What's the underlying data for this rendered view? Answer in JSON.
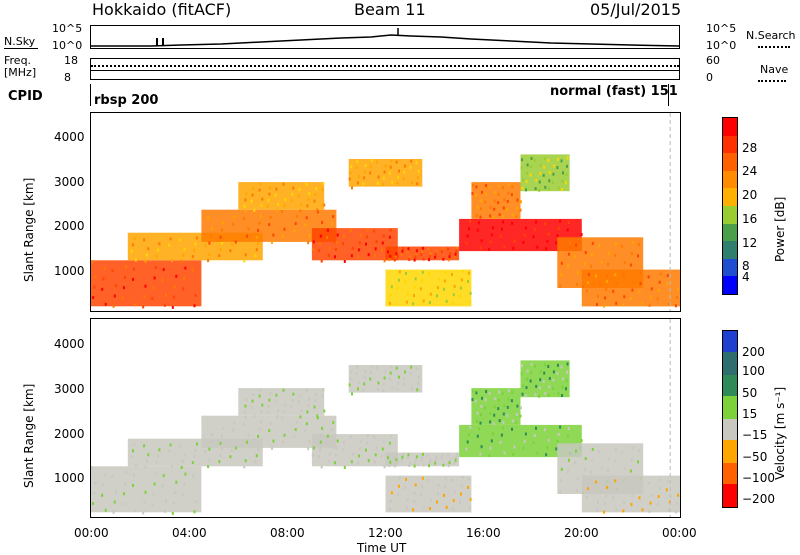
{
  "header": {
    "station": "Hokkaido (fitACF)",
    "beam": "Beam 11",
    "date": "05/Jul/2015"
  },
  "top_panels": {
    "nsky_label": "N.Sky",
    "nsky_ticks": [
      "10^5",
      "10^0"
    ],
    "nsearch_label": "N.Search",
    "nsearch_ticks": [
      "10^5",
      "10^0"
    ],
    "freq_label_1": "Freq.",
    "freq_label_2": "[MHz]",
    "freq_ticks": [
      "18",
      "8"
    ],
    "nave_label": "Nave",
    "nave_ticks": [
      "60",
      "0"
    ],
    "cpid_label": "CPID",
    "cpid_left": "rbsp 200",
    "cpid_right": "normal (fast) 151"
  },
  "chart_data": [
    {
      "type": "heatmap",
      "title": "",
      "xlabel": "Time UT",
      "ylabel": "Slant Range [km]",
      "x_ticks": [
        "00:00",
        "04:00",
        "08:00",
        "12:00",
        "16:00",
        "20:00",
        "00:00"
      ],
      "y_ticks": [
        "1000",
        "2000",
        "3000",
        "4000"
      ],
      "ylim": [
        200,
        4500
      ],
      "colorbar": {
        "label": "Power [dB]",
        "ticks": [
          "4",
          "8",
          "12",
          "16",
          "20",
          "24",
          "28"
        ],
        "range": [
          0,
          30
        ],
        "colors": [
          "#0000ff",
          "#1f4fd0",
          "#2f8060",
          "#4aa04a",
          "#9acd32",
          "#ffd700",
          "#ffa500",
          "#ff7a00",
          "#ff4500",
          "#ff0000"
        ]
      },
      "bands": [
        {
          "t_start": 0.0,
          "t_end": 4.5,
          "r_low": 300,
          "r_high": 1300,
          "level": 0.85
        },
        {
          "t_start": 1.5,
          "t_end": 7.0,
          "r_low": 1300,
          "r_high": 1900,
          "level": 0.7
        },
        {
          "t_start": 4.5,
          "t_end": 10.0,
          "r_low": 1700,
          "r_high": 2400,
          "level": 0.8
        },
        {
          "t_start": 6.0,
          "t_end": 9.5,
          "r_low": 2400,
          "r_high": 3000,
          "level": 0.65
        },
        {
          "t_start": 9.0,
          "t_end": 12.5,
          "r_low": 1300,
          "r_high": 2000,
          "level": 0.85
        },
        {
          "t_start": 10.5,
          "t_end": 13.5,
          "r_low": 2900,
          "r_high": 3500,
          "level": 0.7
        },
        {
          "t_start": 12.0,
          "t_end": 15.0,
          "r_low": 1300,
          "r_high": 1600,
          "level": 0.9
        },
        {
          "t_start": 12.0,
          "t_end": 15.5,
          "r_low": 300,
          "r_high": 1100,
          "level": 0.6
        },
        {
          "t_start": 15.0,
          "t_end": 20.0,
          "r_low": 1500,
          "r_high": 2200,
          "level": 0.95
        },
        {
          "t_start": 15.5,
          "t_end": 17.5,
          "r_low": 2200,
          "r_high": 3000,
          "level": 0.75
        },
        {
          "t_start": 17.5,
          "t_end": 19.5,
          "r_low": 2800,
          "r_high": 3600,
          "level": 0.45
        },
        {
          "t_start": 19.0,
          "t_end": 22.5,
          "r_low": 700,
          "r_high": 1800,
          "level": 0.8
        },
        {
          "t_start": 20.0,
          "t_end": 24.0,
          "r_low": 300,
          "r_high": 1100,
          "level": 0.75
        }
      ]
    },
    {
      "type": "heatmap",
      "title": "",
      "xlabel": "Time UT",
      "ylabel": "Slant Range [km]",
      "x_ticks": [
        "00:00",
        "04:00",
        "08:00",
        "12:00",
        "16:00",
        "20:00",
        "00:00"
      ],
      "y_ticks": [
        "1000",
        "2000",
        "3000",
        "4000"
      ],
      "ylim": [
        200,
        4500
      ],
      "colorbar": {
        "label": "Velocity [m s⁻¹]",
        "ticks": [
          "200",
          "100",
          "50",
          "15",
          "−15",
          "−50",
          "−100",
          "−200"
        ],
        "range": [
          -250,
          250
        ],
        "colors": [
          "#ff0000",
          "#ff4500",
          "#ff8c00",
          "#ffa500",
          "#c8c8c0",
          "#c8c8c0",
          "#7cd23a",
          "#2e8b57",
          "#2e6e6e",
          "#1f3fd0"
        ]
      },
      "bands": [
        {
          "t_start": 0.0,
          "t_end": 4.5,
          "r_low": 300,
          "r_high": 1300,
          "level": 0.5
        },
        {
          "t_start": 1.5,
          "t_end": 7.0,
          "r_low": 1300,
          "r_high": 1900,
          "level": 0.5
        },
        {
          "t_start": 4.5,
          "t_end": 10.0,
          "r_low": 1700,
          "r_high": 2400,
          "level": 0.5
        },
        {
          "t_start": 6.0,
          "t_end": 9.5,
          "r_low": 2400,
          "r_high": 3000,
          "level": 0.5
        },
        {
          "t_start": 9.0,
          "t_end": 12.5,
          "r_low": 1300,
          "r_high": 2000,
          "level": 0.5
        },
        {
          "t_start": 10.5,
          "t_end": 13.5,
          "r_low": 2900,
          "r_high": 3500,
          "level": 0.5
        },
        {
          "t_start": 12.0,
          "t_end": 15.0,
          "r_low": 1300,
          "r_high": 1600,
          "level": 0.5
        },
        {
          "t_start": 12.0,
          "t_end": 15.5,
          "r_low": 300,
          "r_high": 1100,
          "level": 0.4
        },
        {
          "t_start": 15.0,
          "t_end": 20.0,
          "r_low": 1500,
          "r_high": 2200,
          "level": 0.62
        },
        {
          "t_start": 15.5,
          "t_end": 17.5,
          "r_low": 2200,
          "r_high": 3000,
          "level": 0.62
        },
        {
          "t_start": 17.5,
          "t_end": 19.5,
          "r_low": 2800,
          "r_high": 3600,
          "level": 0.66
        },
        {
          "t_start": 19.0,
          "t_end": 22.5,
          "r_low": 700,
          "r_high": 1800,
          "level": 0.5
        },
        {
          "t_start": 20.0,
          "t_end": 24.0,
          "r_low": 300,
          "r_high": 1100,
          "level": 0.42
        }
      ]
    }
  ]
}
